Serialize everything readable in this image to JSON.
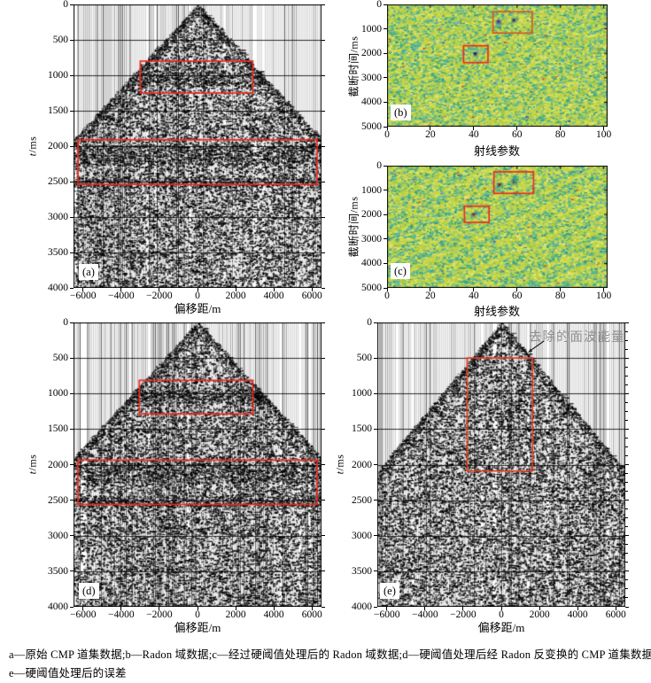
{
  "caption": {
    "line1": "a—原始 CMP 道集数据;b—Radon 域数据;c—经过硬阈值处理后的 Radon 域数据;d—硬阈值处理后经 Radon 反变换的 CMP 道集数据;",
    "line2": "e—硬阈值处理后的误差"
  },
  "colors": {
    "highlight_red": "#ee2a1d",
    "highlight_orange": "#d2571f",
    "seismic_ink": "#000000",
    "background": "#ffffff",
    "radon_background": "#bcd14b",
    "radon_yellow": "#ccd94e",
    "radon_teal": "#49b09a",
    "annotation_gray": "#8f8f8f",
    "axis": "#000000"
  },
  "chart_data": [
    {
      "id": "a",
      "panel_label": "(a)",
      "type": "seismic_wiggle_density",
      "xlabel": "偏移距/m",
      "ylabel_var": "t",
      "ylabel_unit": "/ms",
      "xlim": [
        -6500,
        6500
      ],
      "tlim": [
        0,
        4000
      ],
      "xticks": [
        {
          "v": -6000,
          "label": "−6000"
        },
        {
          "v": -4000,
          "label": "−4000"
        },
        {
          "v": -2000,
          "label": "−2000"
        },
        {
          "v": 0,
          "label": "0"
        },
        {
          "v": 2000,
          "label": "2000"
        },
        {
          "v": 4000,
          "label": "4000"
        },
        {
          "v": 6000,
          "label": "6000"
        }
      ],
      "yticks": [
        {
          "v": 0,
          "label": "0"
        },
        {
          "v": 500,
          "label": "500"
        },
        {
          "v": 1000,
          "label": "1000"
        },
        {
          "v": 1500,
          "label": "1500"
        },
        {
          "v": 2000,
          "label": "2000"
        },
        {
          "v": 2500,
          "label": "2500"
        },
        {
          "v": 3000,
          "label": "3000"
        },
        {
          "v": 3500,
          "label": "3500"
        },
        {
          "v": 4000,
          "label": "4000"
        }
      ],
      "first_arrival_velocity_mps": 3400,
      "event_bands_ms": [
        [
          950,
          1150
        ],
        [
          1980,
          2250
        ],
        [
          2430,
          2580
        ]
      ],
      "highlight_boxes": [
        {
          "x": [
            -3000,
            2900
          ],
          "t": [
            800,
            1250
          ],
          "color": "#ee2a1d"
        },
        {
          "x": [
            -6270,
            6270
          ],
          "t": [
            1910,
            2540
          ],
          "color": "#ee2a1d"
        }
      ],
      "noise_seed": 7
    },
    {
      "id": "b",
      "panel_label": "(b)",
      "type": "radon_domain_map",
      "xlabel": "射线参数",
      "ylabel": "截断时间/ms",
      "xlim": [
        0,
        100
      ],
      "tlim": [
        0,
        5000
      ],
      "xticks": [
        {
          "v": 0,
          "label": "0"
        },
        {
          "v": 20,
          "label": "20"
        },
        {
          "v": 40,
          "label": "40"
        },
        {
          "v": 60,
          "label": "60"
        },
        {
          "v": 80,
          "label": "80"
        },
        {
          "v": 100,
          "label": "100"
        }
      ],
      "yticks": [
        {
          "v": 0,
          "label": "0"
        },
        {
          "v": 1000,
          "label": "1000"
        },
        {
          "v": 2000,
          "label": "2000"
        },
        {
          "v": 3000,
          "label": "3000"
        },
        {
          "v": 4000,
          "label": "4000"
        },
        {
          "v": 5000,
          "label": "5000"
        }
      ],
      "texture": "isotropic",
      "noise_seed": 11,
      "highlight_boxes": [
        {
          "x": [
            48.9,
            67.0
          ],
          "t": [
            300,
            1170
          ],
          "color": "#d2571f"
        },
        {
          "x": [
            35.3,
            46.6
          ],
          "t": [
            1690,
            2380
          ],
          "color": "#ee2a1d"
        }
      ],
      "spots": [
        {
          "x": 51.5,
          "t": 700,
          "color": "#5a3a96",
          "size": 3.5
        },
        {
          "x": 58.5,
          "t": 645,
          "color": "#1f2f7c",
          "size": 3
        },
        {
          "x": 51.2,
          "t": 860,
          "color": "#38c4c4",
          "size": 2.5
        },
        {
          "x": 40.7,
          "t": 2020,
          "color": "#1f2f7c",
          "size": 3.5
        }
      ]
    },
    {
      "id": "c",
      "panel_label": "(c)",
      "type": "radon_domain_map",
      "xlabel": "射线参数",
      "ylabel": "截断时间/ms",
      "xlim": [
        0,
        100
      ],
      "tlim": [
        0,
        5000
      ],
      "xticks": [
        {
          "v": 0,
          "label": "0"
        },
        {
          "v": 20,
          "label": "20"
        },
        {
          "v": 40,
          "label": "40"
        },
        {
          "v": 60,
          "label": "60"
        },
        {
          "v": 80,
          "label": "80"
        },
        {
          "v": 100,
          "label": "100"
        }
      ],
      "yticks": [
        {
          "v": 0,
          "label": "0"
        },
        {
          "v": 1000,
          "label": "1000"
        },
        {
          "v": 2000,
          "label": "2000"
        },
        {
          "v": 3000,
          "label": "3000"
        },
        {
          "v": 4000,
          "label": "4000"
        },
        {
          "v": 5000,
          "label": "5000"
        }
      ],
      "texture": "diagonal",
      "noise_seed": 19,
      "highlight_boxes": [
        {
          "x": [
            49.3,
            67.6
          ],
          "t": [
            253,
            1134
          ],
          "color": "#ee2a1d"
        },
        {
          "x": [
            35.7,
            47.1
          ],
          "t": [
            1655,
            2319
          ],
          "color": "#ee2a1d"
        }
      ],
      "spots": [
        {
          "x": 51.9,
          "t": 780,
          "color": "#7c2a1e",
          "size": 3
        },
        {
          "x": 58.4,
          "t": 660,
          "color": "#555a6a",
          "size": 2.5
        },
        {
          "x": 40.0,
          "t": 1990,
          "color": "#8c2a1a",
          "size": 3
        }
      ]
    },
    {
      "id": "d",
      "panel_label": "(d)",
      "type": "seismic_wiggle_density",
      "xlabel": "偏移距/m",
      "ylabel_var": "t",
      "ylabel_unit": "/ms",
      "xlim": [
        -6500,
        6500
      ],
      "tlim": [
        0,
        4000
      ],
      "xticks": [
        {
          "v": -6000,
          "label": "−6000"
        },
        {
          "v": -4000,
          "label": "−4000"
        },
        {
          "v": -2000,
          "label": "−2000"
        },
        {
          "v": 0,
          "label": "0"
        },
        {
          "v": 2000,
          "label": "2000"
        },
        {
          "v": 4000,
          "label": "4000"
        },
        {
          "v": 6000,
          "label": "6000"
        }
      ],
      "yticks": [
        {
          "v": 0,
          "label": "0"
        },
        {
          "v": 500,
          "label": "500"
        },
        {
          "v": 1000,
          "label": "1000"
        },
        {
          "v": 1500,
          "label": "1500"
        },
        {
          "v": 2000,
          "label": "2000"
        },
        {
          "v": 2500,
          "label": "2500"
        },
        {
          "v": 3000,
          "label": "3000"
        },
        {
          "v": 3500,
          "label": "3500"
        },
        {
          "v": 4000,
          "label": "4000"
        }
      ],
      "first_arrival_velocity_mps": 3400,
      "event_bands_ms": [
        [
          950,
          1150
        ],
        [
          1980,
          2250
        ],
        [
          2430,
          2580
        ]
      ],
      "highlight_boxes": [
        {
          "x": [
            -3050,
            2900
          ],
          "t": [
            814,
            1287
          ],
          "color": "#ee2a1d"
        },
        {
          "x": [
            -6270,
            6270
          ],
          "t": [
            1936,
            2560
          ],
          "color": "#ee2a1d"
        }
      ],
      "noise_seed": 13
    },
    {
      "id": "e",
      "panel_label": "(e)",
      "type": "seismic_wiggle_density",
      "xlabel": "偏移距/m",
      "ylabel_var": "t",
      "ylabel_unit": "/ms",
      "xlim": [
        -6500,
        6500
      ],
      "tlim": [
        0,
        4000
      ],
      "xticks": [
        {
          "v": -6000,
          "label": "−6000"
        },
        {
          "v": -4000,
          "label": "−4000"
        },
        {
          "v": -2000,
          "label": "−2000"
        },
        {
          "v": 0,
          "label": "0"
        },
        {
          "v": 2000,
          "label": "2000"
        },
        {
          "v": 4000,
          "label": "4000"
        },
        {
          "v": 6000,
          "label": "6000"
        }
      ],
      "yticks": [
        {
          "v": 0,
          "label": "0"
        },
        {
          "v": 500,
          "label": "500"
        },
        {
          "v": 1000,
          "label": "1000"
        },
        {
          "v": 1500,
          "label": "1500"
        },
        {
          "v": 2000,
          "label": "2000"
        },
        {
          "v": 2500,
          "label": "2500"
        },
        {
          "v": 3000,
          "label": "3000"
        },
        {
          "v": 3500,
          "label": "3500"
        },
        {
          "v": 4000,
          "label": "4000"
        }
      ],
      "first_arrival_velocity_mps": 3100,
      "event_bands_ms": [],
      "highlight_boxes": [
        {
          "x": [
            -1790,
            1640
          ],
          "t": [
            500,
            2090
          ],
          "color": "#e0391f"
        }
      ],
      "annotation": {
        "text": "去除的面波能量"
      },
      "noise_seed": 23
    }
  ]
}
